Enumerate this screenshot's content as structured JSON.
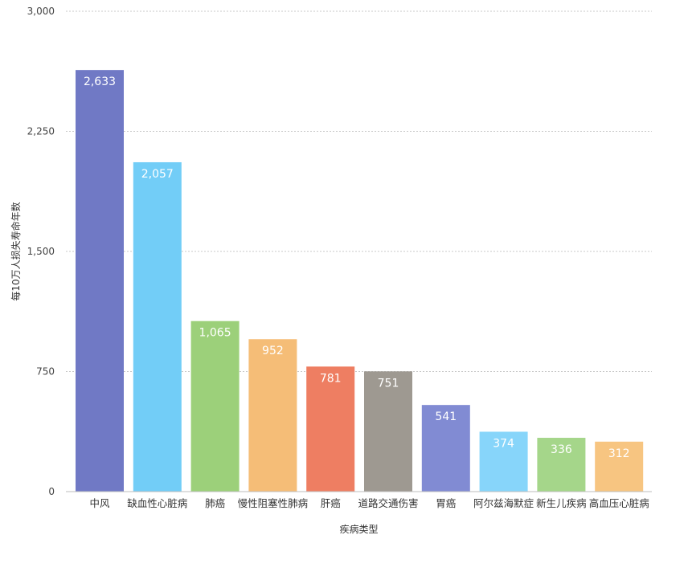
{
  "chart_data": {
    "type": "bar",
    "categories": [
      "中风",
      "缺血性心脏病",
      "肺癌",
      "慢性阻塞性肺病",
      "肝癌",
      "道路交通伤害",
      "胃癌",
      "阿尔兹海默症",
      "新生儿疾病",
      "高血压心脏病"
    ],
    "values": [
      2633,
      2057,
      1065,
      952,
      781,
      751,
      541,
      374,
      336,
      312
    ],
    "value_labels": [
      "2,633",
      "2,057",
      "1,065",
      "952",
      "781",
      "751",
      "541",
      "374",
      "336",
      "312"
    ],
    "colors": [
      "#7079c5",
      "#72cdf7",
      "#9cd07a",
      "#f5bd77",
      "#ee7e62",
      "#9e9991",
      "#818bd3",
      "#87d5fa",
      "#a5d68a",
      "#f7c581"
    ],
    "xlabel": "疾病类型",
    "ylabel": "每10万人损失寿命年数",
    "ylim": [
      0,
      3000
    ],
    "yticks": [
      0,
      750,
      1500,
      2250,
      3000
    ],
    "ytick_labels": [
      "0",
      "750",
      "1,500",
      "2,250",
      "3,000"
    ],
    "grid": true,
    "legend": "none"
  }
}
